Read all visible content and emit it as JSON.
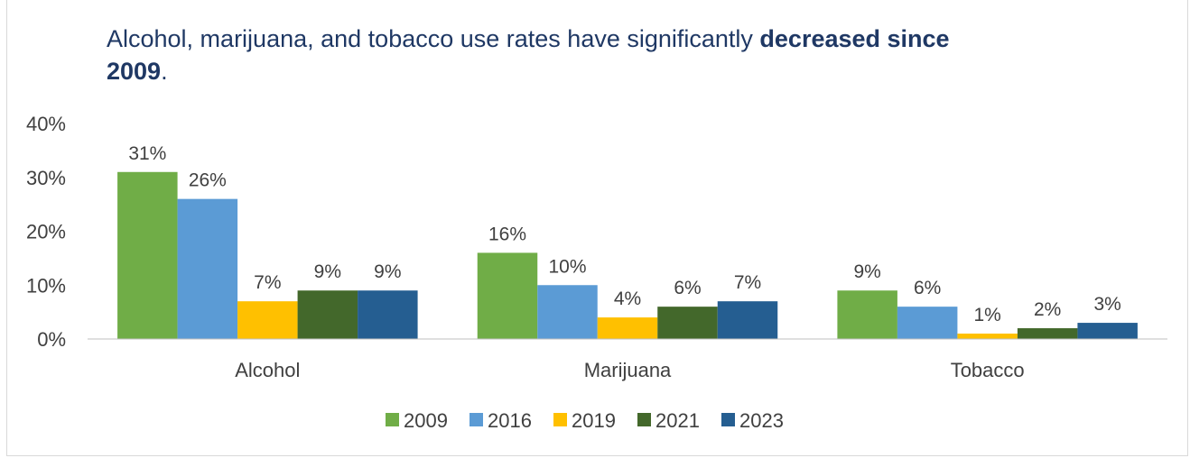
{
  "chart_data": {
    "type": "bar",
    "title": {
      "line1": "Alcohol, marijuana, and tobacco use rates have significantly ",
      "bold1": "decreased since",
      "bold2": "2009",
      "end": "."
    },
    "categories": [
      "Alcohol",
      "Marijuana",
      "Tobacco"
    ],
    "series": [
      {
        "name": "2009",
        "color": "#70ad47",
        "values": [
          31,
          16,
          9
        ]
      },
      {
        "name": "2016",
        "color": "#5b9bd5",
        "values": [
          26,
          10,
          6
        ]
      },
      {
        "name": "2019",
        "color": "#ffc000",
        "values": [
          7,
          4,
          1
        ]
      },
      {
        "name": "2021",
        "color": "#43682b",
        "values": [
          9,
          6,
          2
        ]
      },
      {
        "name": "2023",
        "color": "#255e91",
        "values": [
          9,
          7,
          3
        ]
      }
    ],
    "y_ticks": [
      "0%",
      "10%",
      "20%",
      "30%",
      "40%"
    ],
    "ylim": [
      0,
      40
    ],
    "value_suffix": "%",
    "grid": false,
    "legend_position": "bottom",
    "xlabel": "",
    "ylabel": ""
  }
}
